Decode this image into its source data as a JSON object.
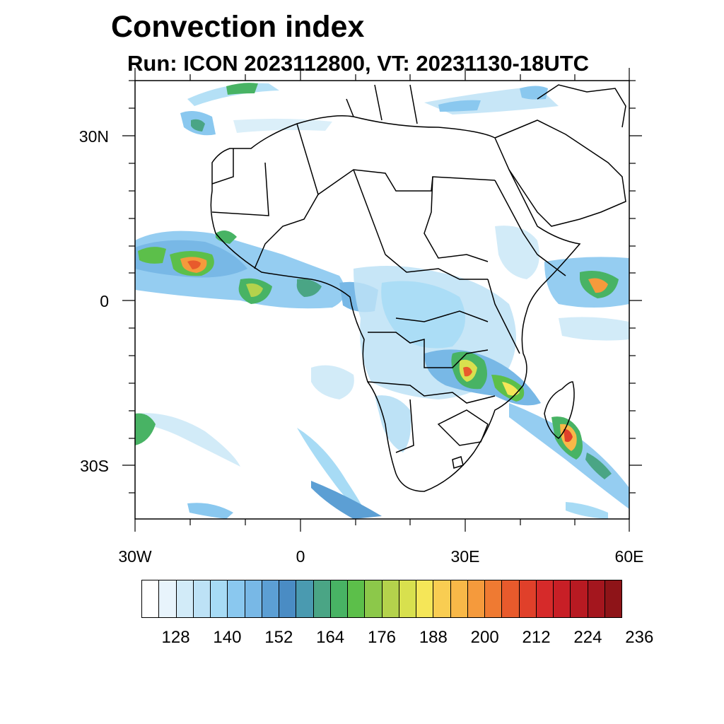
{
  "header": {
    "title": "Convection index",
    "subtitle": "Run: ICON 2023112800,  VT: 20231130-18UTC"
  },
  "map": {
    "model": "ICON",
    "lat_labels": [
      "30N",
      "0",
      "30S"
    ],
    "lon_labels": [
      "30W",
      "0",
      "30E",
      "60E"
    ],
    "extent": {
      "lon": [
        -30,
        60
      ],
      "lat": [
        -40,
        40
      ]
    }
  },
  "legend": {
    "tick_labels": [
      "128",
      "140",
      "152",
      "164",
      "176",
      "188",
      "200",
      "212",
      "224",
      "236"
    ],
    "colors": [
      "#ffffff",
      "#e8f4fc",
      "#d2ebf8",
      "#bde2f6",
      "#a7dbf5",
      "#8ac8ef",
      "#78b8e6",
      "#5c9fd4",
      "#4a8cc4",
      "#4a9ab0",
      "#4aa585",
      "#48b364",
      "#5cbf4a",
      "#8cc84a",
      "#b4d24c",
      "#d8e04e",
      "#f5e658",
      "#f9cd52",
      "#f8b848",
      "#f59a3c",
      "#ef7a32",
      "#e85a2c",
      "#e0402a",
      "#d62a2a",
      "#c81f26",
      "#b81a22",
      "#a4161e",
      "#8e1418"
    ]
  },
  "palette": {
    "land_border": "#000000",
    "frame": "#000000"
  }
}
